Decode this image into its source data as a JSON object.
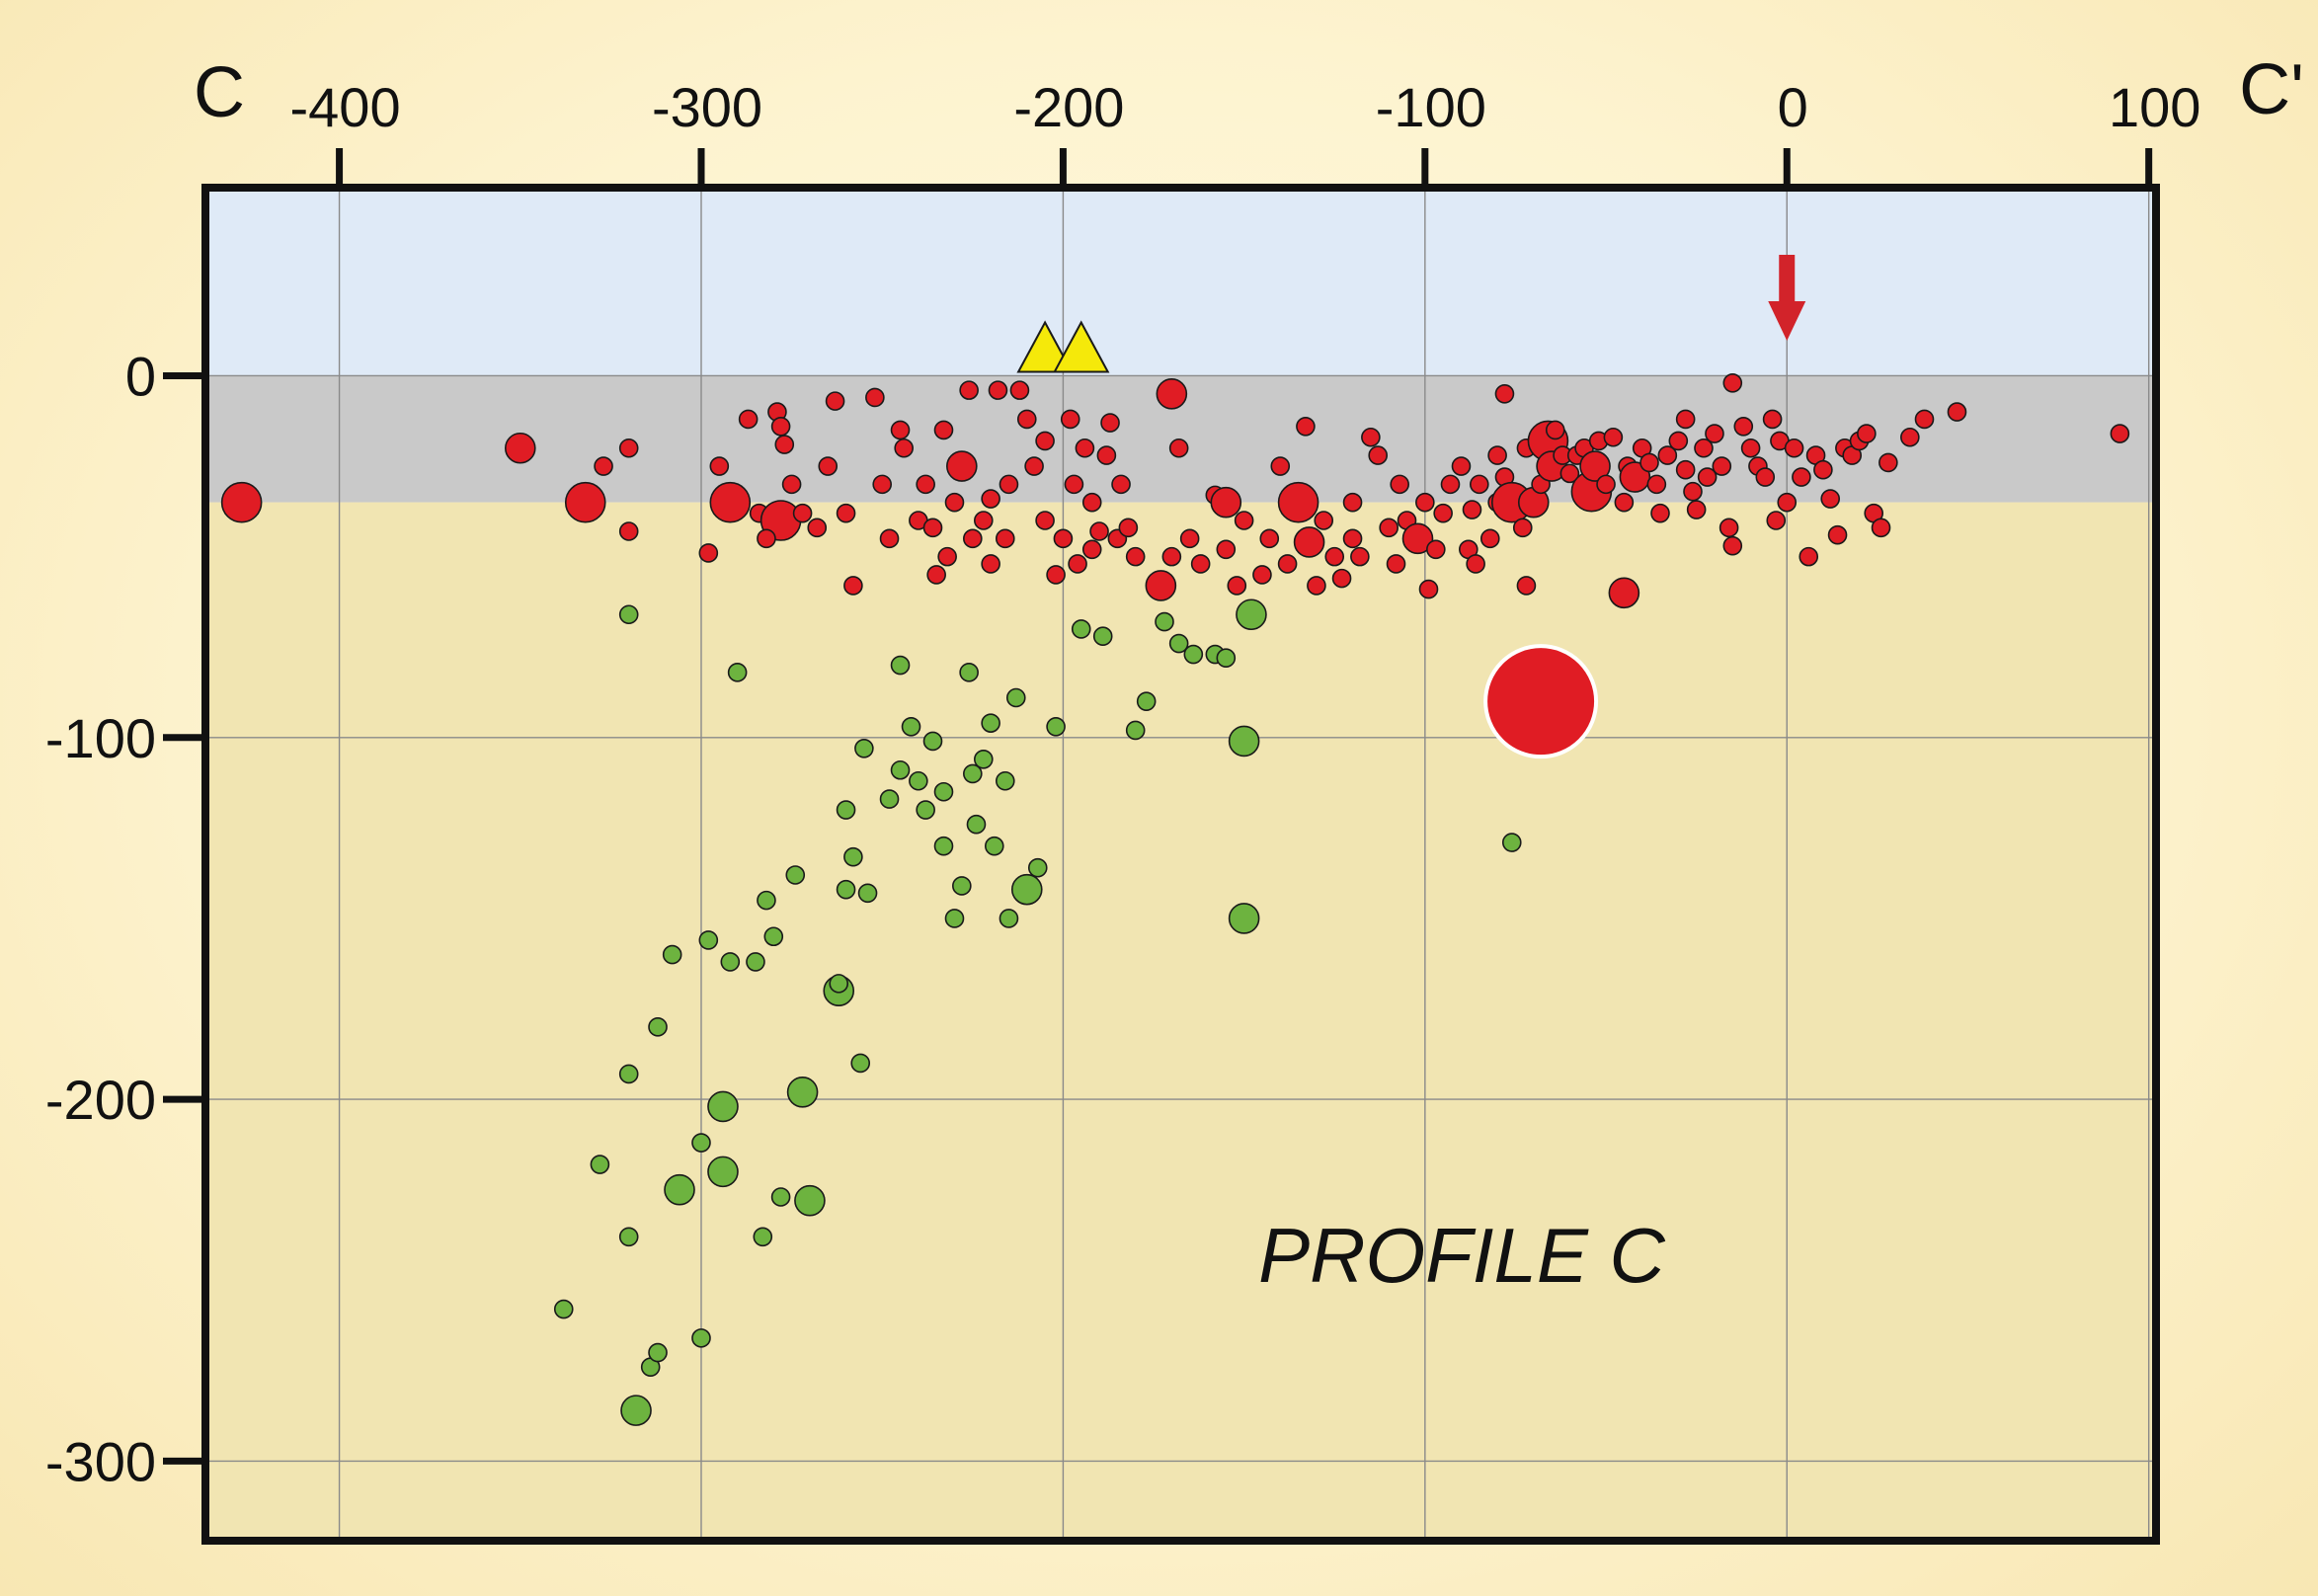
{
  "chart_data": {
    "type": "scatter",
    "title": "",
    "xlabel": "",
    "ylabel": "",
    "xlim": [
      -437,
      102
    ],
    "ylim": [
      -322,
      52
    ],
    "x_ticks": [
      "-400",
      "-300",
      "-200",
      "-100",
      "0",
      "100"
    ],
    "y_ticks": [
      "0",
      "-100",
      "-200",
      "-300"
    ],
    "end_labels": {
      "left": "C",
      "right": "C'"
    },
    "annotation": "PROFILE C",
    "grid": true,
    "bands": [
      {
        "from": 0,
        "to": 52,
        "color": "#dfeaf7"
      },
      {
        "from": -35,
        "to": 0,
        "color": "#c9c9c9"
      },
      {
        "from": -322,
        "to": -35,
        "color": "#f1e5b2"
      }
    ],
    "colors": {
      "red": "#e01c24",
      "green": "#6db33f",
      "yellow": "#f5e90a",
      "arrow": "#d2232a"
    },
    "volcanoes": [
      [
        -205,
        6
      ],
      [
        -195,
        6
      ]
    ],
    "arrow_x": 0,
    "series": [
      {
        "color": "red",
        "values": [
          [
            -427,
            -35,
            3
          ],
          [
            -350,
            -20,
            2
          ],
          [
            -332,
            -35,
            3
          ],
          [
            -320,
            -20,
            1
          ],
          [
            -327,
            -25,
            1
          ],
          [
            -320,
            -43,
            1
          ],
          [
            -292,
            -35,
            3
          ],
          [
            -295,
            -25,
            1
          ],
          [
            -298,
            -49,
            1
          ],
          [
            -287,
            -12,
            1
          ],
          [
            -279,
            -10,
            1
          ],
          [
            -278,
            -14,
            1
          ],
          [
            -277,
            -19,
            1
          ],
          [
            -275,
            -30,
            1
          ],
          [
            -284,
            -38,
            1
          ],
          [
            -278,
            -40,
            3
          ],
          [
            -282,
            -45,
            1
          ],
          [
            -272,
            -38,
            1
          ],
          [
            -268,
            -42,
            1
          ],
          [
            -265,
            -25,
            1
          ],
          [
            -263,
            -7,
            1
          ],
          [
            -260,
            -38,
            1
          ],
          [
            -258,
            -58,
            1
          ],
          [
            -252,
            -6,
            1
          ],
          [
            -250,
            -30,
            1
          ],
          [
            -248,
            -45,
            1
          ],
          [
            -245,
            -15,
            1
          ],
          [
            -244,
            -20,
            1
          ],
          [
            -240,
            -40,
            1
          ],
          [
            -238,
            -30,
            1
          ],
          [
            -236,
            -42,
            1
          ],
          [
            -235,
            -55,
            1
          ],
          [
            -232,
            -50,
            1
          ],
          [
            -233,
            -15,
            1
          ],
          [
            -230,
            -35,
            1
          ],
          [
            -228,
            -25,
            2
          ],
          [
            -226,
            -4,
            1
          ],
          [
            -225,
            -45,
            1
          ],
          [
            -222,
            -40,
            1
          ],
          [
            -220,
            -52,
            1
          ],
          [
            -220,
            -34,
            1
          ],
          [
            -218,
            -4,
            1
          ],
          [
            -216,
            -45,
            1
          ],
          [
            -215,
            -30,
            1
          ],
          [
            -212,
            -4,
            1
          ],
          [
            -210,
            -12,
            1
          ],
          [
            -208,
            -25,
            1
          ],
          [
            -205,
            -18,
            1
          ],
          [
            -205,
            -40,
            1
          ],
          [
            -202,
            -55,
            1
          ],
          [
            -200,
            -45,
            1
          ],
          [
            -198,
            -12,
            1
          ],
          [
            -197,
            -30,
            1
          ],
          [
            -196,
            -52,
            1
          ],
          [
            -194,
            -20,
            1
          ],
          [
            -192,
            -35,
            1
          ],
          [
            -192,
            -48,
            1
          ],
          [
            -190,
            -43,
            1
          ],
          [
            -188,
            -22,
            1
          ],
          [
            -187,
            -13,
            1
          ],
          [
            -185,
            -45,
            1
          ],
          [
            -184,
            -30,
            1
          ],
          [
            -182,
            -42,
            1
          ],
          [
            -180,
            -50,
            1
          ],
          [
            -170,
            -5,
            2
          ],
          [
            -168,
            -20,
            1
          ],
          [
            -170,
            -50,
            1
          ],
          [
            -173,
            -58,
            2
          ],
          [
            -165,
            -45,
            1
          ],
          [
            -162,
            -52,
            1
          ],
          [
            -158,
            -33,
            1
          ],
          [
            -155,
            -35,
            2
          ],
          [
            -155,
            -48,
            1
          ],
          [
            -150,
            -40,
            1
          ],
          [
            -152,
            -58,
            1
          ],
          [
            -145,
            -55,
            1
          ],
          [
            -143,
            -45,
            1
          ],
          [
            -140,
            -25,
            1
          ],
          [
            -138,
            -52,
            1
          ],
          [
            -135,
            -35,
            3
          ],
          [
            -133,
            -14,
            1
          ],
          [
            -132,
            -46,
            2
          ],
          [
            -130,
            -58,
            1
          ],
          [
            -128,
            -40,
            1
          ],
          [
            -125,
            -50,
            1
          ],
          [
            -123,
            -56,
            1
          ],
          [
            -120,
            -45,
            1
          ],
          [
            -120,
            -35,
            1
          ],
          [
            -118,
            -50,
            1
          ],
          [
            -115,
            -17,
            1
          ],
          [
            -113,
            -22,
            1
          ],
          [
            -110,
            -42,
            1
          ],
          [
            -108,
            -52,
            1
          ],
          [
            -107,
            -30,
            1
          ],
          [
            -105,
            -40,
            1
          ],
          [
            -102,
            -45,
            2
          ],
          [
            -100,
            -35,
            1
          ],
          [
            -99,
            -59,
            1
          ],
          [
            -97,
            -48,
            1
          ],
          [
            -95,
            -38,
            1
          ],
          [
            -93,
            -30,
            1
          ],
          [
            -90,
            -25,
            1
          ],
          [
            -88,
            -48,
            1
          ],
          [
            -87,
            -37,
            1
          ],
          [
            -86,
            -52,
            1
          ],
          [
            -85,
            -30,
            1
          ],
          [
            -82,
            -45,
            1
          ],
          [
            -80,
            -22,
            1
          ],
          [
            -80,
            -35,
            1
          ],
          [
            -78,
            -5,
            1
          ],
          [
            -78,
            -28,
            1
          ],
          [
            -76,
            -35,
            3
          ],
          [
            -73,
            -42,
            1
          ],
          [
            -72,
            -20,
            1
          ],
          [
            -70,
            -35,
            2
          ],
          [
            -68,
            -30,
            1
          ],
          [
            -66,
            -18,
            3
          ],
          [
            -65,
            -25,
            2
          ],
          [
            -64,
            -15,
            1
          ],
          [
            -62,
            -22,
            1
          ],
          [
            -60,
            -27,
            1
          ],
          [
            -58,
            -22,
            1
          ],
          [
            -56,
            -20,
            1
          ],
          [
            -54,
            -32,
            3
          ],
          [
            -53,
            -25,
            2
          ],
          [
            -52,
            -18,
            1
          ],
          [
            -50,
            -30,
            1
          ],
          [
            -48,
            -17,
            1
          ],
          [
            -45,
            -35,
            1
          ],
          [
            -44,
            -25,
            1
          ],
          [
            -42,
            -28,
            2
          ],
          [
            -40,
            -20,
            1
          ],
          [
            -38,
            -24,
            1
          ],
          [
            -36,
            -30,
            1
          ],
          [
            -35,
            -38,
            1
          ],
          [
            -33,
            -22,
            1
          ],
          [
            -30,
            -18,
            1
          ],
          [
            -28,
            -12,
            1
          ],
          [
            -28,
            -26,
            1
          ],
          [
            -26,
            -32,
            1
          ],
          [
            -25,
            -37,
            1
          ],
          [
            -23,
            -20,
            1
          ],
          [
            -22,
            -28,
            1
          ],
          [
            -20,
            -16,
            1
          ],
          [
            -18,
            -25,
            1
          ],
          [
            -16,
            -42,
            1
          ],
          [
            -15,
            -47,
            1
          ],
          [
            -15,
            -2,
            1
          ],
          [
            -12,
            -14,
            1
          ],
          [
            -10,
            -20,
            1
          ],
          [
            -8,
            -25,
            1
          ],
          [
            -6,
            -28,
            1
          ],
          [
            -4,
            -12,
            1
          ],
          [
            -3,
            -40,
            1
          ],
          [
            -2,
            -18,
            1
          ],
          [
            0,
            -35,
            1
          ],
          [
            2,
            -20,
            1
          ],
          [
            4,
            -28,
            1
          ],
          [
            6,
            -50,
            1
          ],
          [
            8,
            -22,
            1
          ],
          [
            10,
            -26,
            1
          ],
          [
            12,
            -34,
            1
          ],
          [
            14,
            -44,
            1
          ],
          [
            16,
            -20,
            1
          ],
          [
            18,
            -22,
            1
          ],
          [
            20,
            -18,
            1
          ],
          [
            22,
            -16,
            1
          ],
          [
            24,
            -38,
            1
          ],
          [
            26,
            -42,
            1
          ],
          [
            28,
            -24,
            1
          ],
          [
            34,
            -17,
            1
          ],
          [
            38,
            -12,
            1
          ],
          [
            47,
            -10,
            1
          ],
          [
            92,
            -16,
            1
          ],
          [
            -45,
            -60,
            2
          ],
          [
            -72,
            -58,
            1
          ],
          [
            -68,
            -90,
            4
          ]
        ]
      },
      {
        "color": "green",
        "values": [
          [
            -320,
            -66,
            1
          ],
          [
            -290,
            -82,
            1
          ],
          [
            -255,
            -103,
            1
          ],
          [
            -260,
            -120,
            1
          ],
          [
            -258,
            -133,
            1
          ],
          [
            -254,
            -143,
            1
          ],
          [
            -248,
            -117,
            1
          ],
          [
            -245,
            -109,
            1
          ],
          [
            -245,
            -80,
            1
          ],
          [
            -242,
            -97,
            1
          ],
          [
            -240,
            -112,
            1
          ],
          [
            -238,
            -120,
            1
          ],
          [
            -236,
            -101,
            1
          ],
          [
            -233,
            -115,
            1
          ],
          [
            -233,
            -130,
            1
          ],
          [
            -230,
            -150,
            1
          ],
          [
            -228,
            -141,
            1
          ],
          [
            -226,
            -82,
            1
          ],
          [
            -225,
            -110,
            1
          ],
          [
            -224,
            -124,
            1
          ],
          [
            -222,
            -106,
            1
          ],
          [
            -220,
            -96,
            1
          ],
          [
            -219,
            -130,
            1
          ],
          [
            -215,
            -150,
            1
          ],
          [
            -216,
            -112,
            1
          ],
          [
            -213,
            -89,
            1
          ],
          [
            -210,
            -142,
            2
          ],
          [
            -207,
            -136,
            1
          ],
          [
            -202,
            -97,
            1
          ],
          [
            -195,
            -70,
            1
          ],
          [
            -189,
            -72,
            1
          ],
          [
            -180,
            -98,
            1
          ],
          [
            -177,
            -90,
            1
          ],
          [
            -172,
            -68,
            1
          ],
          [
            -168,
            -74,
            1
          ],
          [
            -164,
            -77,
            1
          ],
          [
            -158,
            -77,
            1
          ],
          [
            -155,
            -78,
            1
          ],
          [
            -148,
            -66,
            2
          ],
          [
            -150,
            -101,
            2
          ],
          [
            -150,
            -150,
            2
          ],
          [
            -76,
            -129,
            1
          ],
          [
            -260,
            -142,
            1
          ],
          [
            -262,
            -170,
            2
          ],
          [
            -256,
            -190,
            1
          ],
          [
            -262,
            -168,
            1
          ],
          [
            -272,
            -198,
            2
          ],
          [
            -274,
            -138,
            1
          ],
          [
            -280,
            -155,
            1
          ],
          [
            -282,
            -145,
            1
          ],
          [
            -285,
            -162,
            1
          ],
          [
            -292,
            -162,
            1
          ],
          [
            -294,
            -202,
            2
          ],
          [
            -294,
            -220,
            2
          ],
          [
            -298,
            -156,
            1
          ],
          [
            -300,
            -212,
            1
          ],
          [
            -306,
            -225,
            2
          ],
          [
            -308,
            -160,
            1
          ],
          [
            -312,
            -180,
            1
          ],
          [
            -320,
            -193,
            1
          ],
          [
            -328,
            -218,
            1
          ],
          [
            -320,
            -238,
            1
          ],
          [
            -270,
            -228,
            2
          ],
          [
            -278,
            -227,
            1
          ],
          [
            -283,
            -238,
            1
          ],
          [
            -300,
            -266,
            1
          ],
          [
            -314,
            -274,
            1
          ],
          [
            -318,
            -286,
            2
          ],
          [
            -312,
            -270,
            1
          ],
          [
            -338,
            -258,
            1
          ]
        ]
      }
    ]
  }
}
